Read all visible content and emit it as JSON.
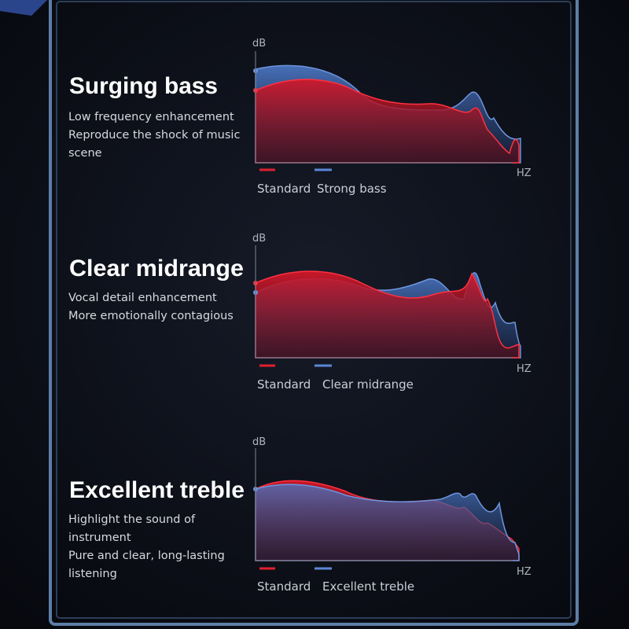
{
  "sections": [
    {
      "title": "Surging bass",
      "description": [
        "Low frequency enhancement",
        "Reproduce the shock of music",
        "scene"
      ],
      "graph": {
        "y_axis": "dB",
        "x_axis": "HZ",
        "legend": [
          "Standard",
          "Strong bass"
        ]
      }
    },
    {
      "title": "Clear midrange",
      "description": [
        "Vocal detail enhancement",
        "More emotionally contagious"
      ],
      "graph": {
        "y_axis": "dB",
        "x_axis": "HZ",
        "legend": [
          "Standard",
          "Clear midrange"
        ]
      }
    },
    {
      "title": "Excellent treble",
      "description": [
        "Highlight the sound of",
        "instrument",
        "Pure and clear, long-lasting",
        "listening"
      ],
      "graph": {
        "y_axis": "dB",
        "x_axis": "HZ",
        "legend": [
          "Standard",
          "Excellent treble"
        ]
      }
    }
  ]
}
